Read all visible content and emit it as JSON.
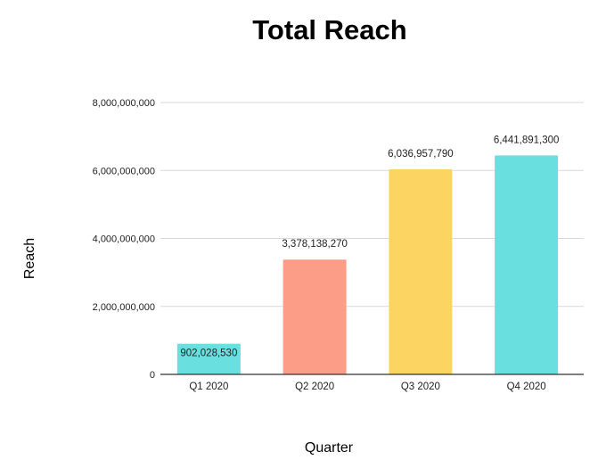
{
  "chart_data": {
    "type": "bar",
    "title": "Total Reach",
    "xlabel": "Quarter",
    "ylabel": "Reach",
    "categories": [
      "Q1 2020",
      "Q2 2020",
      "Q3 2020",
      "Q4 2020"
    ],
    "values": [
      902028530,
      3378138270,
      6036957790,
      6441891300
    ],
    "data_labels": [
      "902,028,530",
      "3,378,138,270",
      "6,036,957,790",
      "6,441,891,300"
    ],
    "colors": [
      "#6ADFDF",
      "#FC9D88",
      "#FCD462",
      "#6ADFDF"
    ],
    "ylim": [
      0,
      8000000000
    ],
    "yticks": [
      0,
      2000000000,
      4000000000,
      6000000000,
      8000000000
    ],
    "ytick_labels": [
      "0",
      "2,000,000,000",
      "4,000,000,000",
      "6,000,000,000",
      "8,000,000,000"
    ],
    "grid": true,
    "legend": "none"
  }
}
